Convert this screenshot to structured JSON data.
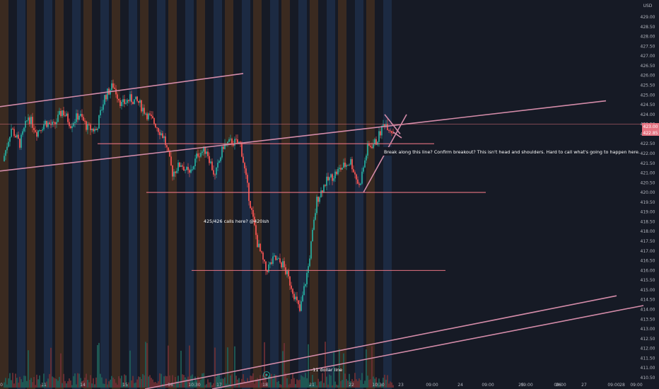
{
  "chart_data": {
    "type": "candlestick",
    "currency": "USD",
    "y_ticks": [
      "429.00",
      "428.50",
      "428.00",
      "427.50",
      "427.00",
      "426.50",
      "426.00",
      "425.50",
      "425.00",
      "424.50",
      "424.00",
      "423.50",
      "423.00",
      "422.50",
      "422.00",
      "421.50",
      "421.00",
      "420.50",
      "420.00",
      "419.50",
      "419.00",
      "418.50",
      "418.00",
      "417.50",
      "417.00",
      "416.50",
      "416.00",
      "415.50",
      "415.00",
      "414.50",
      "414.00",
      "413.50",
      "413.00",
      "412.50",
      "412.00",
      "411.50",
      "411.00",
      "410.50"
    ],
    "ylim": [
      410.5,
      429.0
    ],
    "x_ticks": [
      "0",
      "11",
      "14",
      "15",
      "16",
      "10:30",
      "17",
      "18",
      "21",
      "22",
      "10:30",
      "23",
      "09:00",
      "24",
      "09:00",
      "25",
      "09:00",
      "26",
      "09:00",
      "27",
      "09:00",
      "28",
      "09:00"
    ],
    "price_labels": [
      "423.00",
      "422.85"
    ],
    "close_series": [
      {
        "x": 0.0,
        "close": 421.6
      },
      {
        "x": 0.6,
        "close": 423.3
      },
      {
        "x": 1.2,
        "close": 422.5
      },
      {
        "x": 1.8,
        "close": 423.9
      },
      {
        "x": 2.4,
        "close": 423.1
      },
      {
        "x": 3.0,
        "close": 423.6
      },
      {
        "x": 3.6,
        "close": 423.4
      },
      {
        "x": 4.2,
        "close": 424.2
      },
      {
        "x": 4.8,
        "close": 423.5
      },
      {
        "x": 5.4,
        "close": 424.0
      },
      {
        "x": 6.0,
        "close": 423.3
      },
      {
        "x": 6.6,
        "close": 423.2
      },
      {
        "x": 7.2,
        "close": 424.9
      },
      {
        "x": 7.8,
        "close": 425.5
      },
      {
        "x": 8.4,
        "close": 424.5
      },
      {
        "x": 9.0,
        "close": 424.8
      },
      {
        "x": 9.6,
        "close": 424.6
      },
      {
        "x": 10.2,
        "close": 424.0
      },
      {
        "x": 10.8,
        "close": 423.5
      },
      {
        "x": 11.4,
        "close": 422.8
      },
      {
        "x": 12.0,
        "close": 421.0
      },
      {
        "x": 12.6,
        "close": 421.5
      },
      {
        "x": 13.2,
        "close": 420.9
      },
      {
        "x": 13.8,
        "close": 422.0
      },
      {
        "x": 14.4,
        "close": 422.2
      },
      {
        "x": 15.0,
        "close": 420.8
      },
      {
        "x": 15.6,
        "close": 422.4
      },
      {
        "x": 16.2,
        "close": 422.6
      },
      {
        "x": 16.8,
        "close": 422.5
      },
      {
        "x": 17.4,
        "close": 419.8
      },
      {
        "x": 18.0,
        "close": 417.4
      },
      {
        "x": 18.6,
        "close": 416.0
      },
      {
        "x": 19.2,
        "close": 416.6
      },
      {
        "x": 19.8,
        "close": 416.3
      },
      {
        "x": 20.4,
        "close": 415.2
      },
      {
        "x": 21.0,
        "close": 413.9
      },
      {
        "x": 21.6,
        "close": 416.2
      },
      {
        "x": 22.2,
        "close": 419.6
      },
      {
        "x": 22.8,
        "close": 420.5
      },
      {
        "x": 23.4,
        "close": 420.9
      },
      {
        "x": 24.0,
        "close": 421.3
      },
      {
        "x": 24.6,
        "close": 421.6
      },
      {
        "x": 25.2,
        "close": 420.3
      },
      {
        "x": 25.8,
        "close": 422.3
      },
      {
        "x": 26.4,
        "close": 422.6
      },
      {
        "x": 27.0,
        "close": 423.6
      },
      {
        "x": 27.6,
        "close": 423.1
      }
    ],
    "horizontal_levels": [
      423.5,
      422.5,
      420.0,
      416.0
    ],
    "annotations": {
      "breakout_note": "Break along this line? Confirm breakout? This isn't head and shoulders. Hard to call what's going to happen here.",
      "calls_note": "425/426 calls here? @420ish",
      "dollar_line": "-11 dollar line"
    },
    "colors": {
      "background": "#161a25",
      "up": "#26a69a",
      "down": "#ef5350",
      "trendline": "#d38ba8",
      "level": "#e57381",
      "session_orange": "#3a2a20",
      "session_blue": "#1c2a42",
      "axis_text": "#b2b5be"
    }
  }
}
